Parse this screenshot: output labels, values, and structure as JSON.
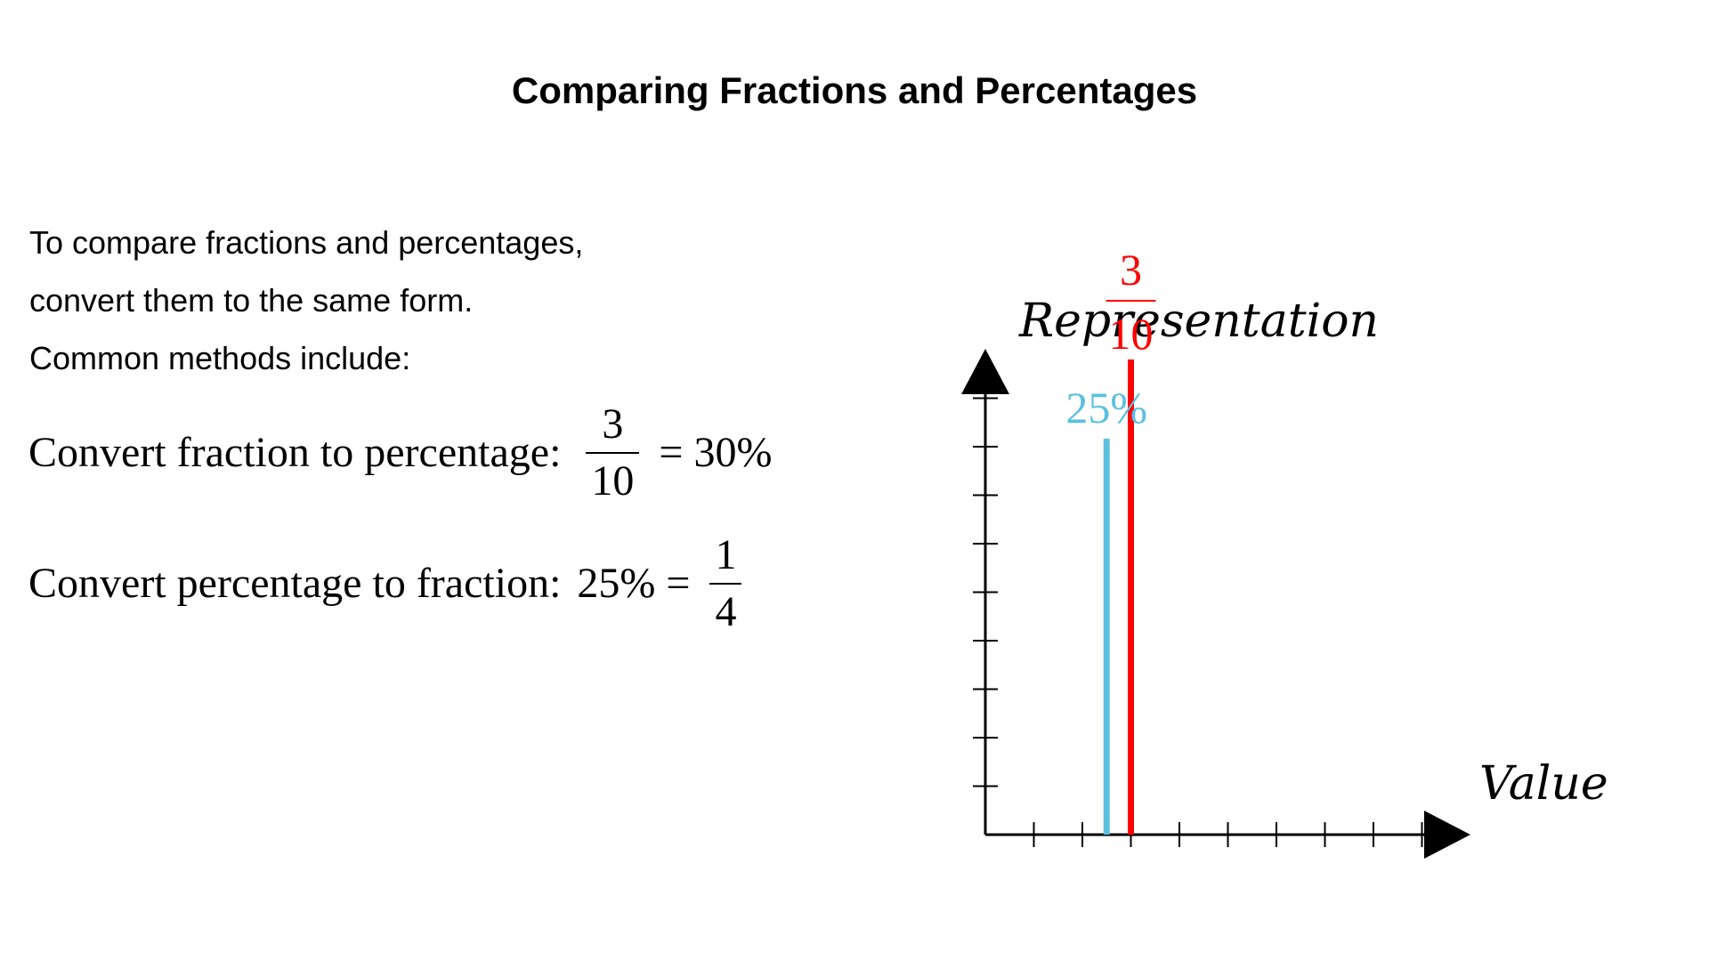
{
  "title": "Comparing Fractions and Percentages",
  "intro": {
    "line1": "To compare fractions and percentages,",
    "line2": "convert them to the same form.",
    "line3": "Common methods include:"
  },
  "formula1": {
    "label": "Convert fraction to percentage:",
    "numerator": "3",
    "denominator": "10",
    "equals": "=",
    "result": "30%"
  },
  "formula2": {
    "label": "Convert percentage to fraction:",
    "percent": "25%",
    "equals": "=",
    "numerator": "1",
    "denominator": "4"
  },
  "diagram": {
    "y_axis_label": "Representation",
    "x_axis_label": "Value",
    "bars": [
      {
        "name": "percentage",
        "label": "25%",
        "value": 0.25,
        "color": "#5bc0de"
      },
      {
        "name": "fraction",
        "label_numerator": "3",
        "label_denominator": "10",
        "value": 0.3,
        "color": "#ff0000"
      }
    ],
    "axis_color": "#000000"
  }
}
